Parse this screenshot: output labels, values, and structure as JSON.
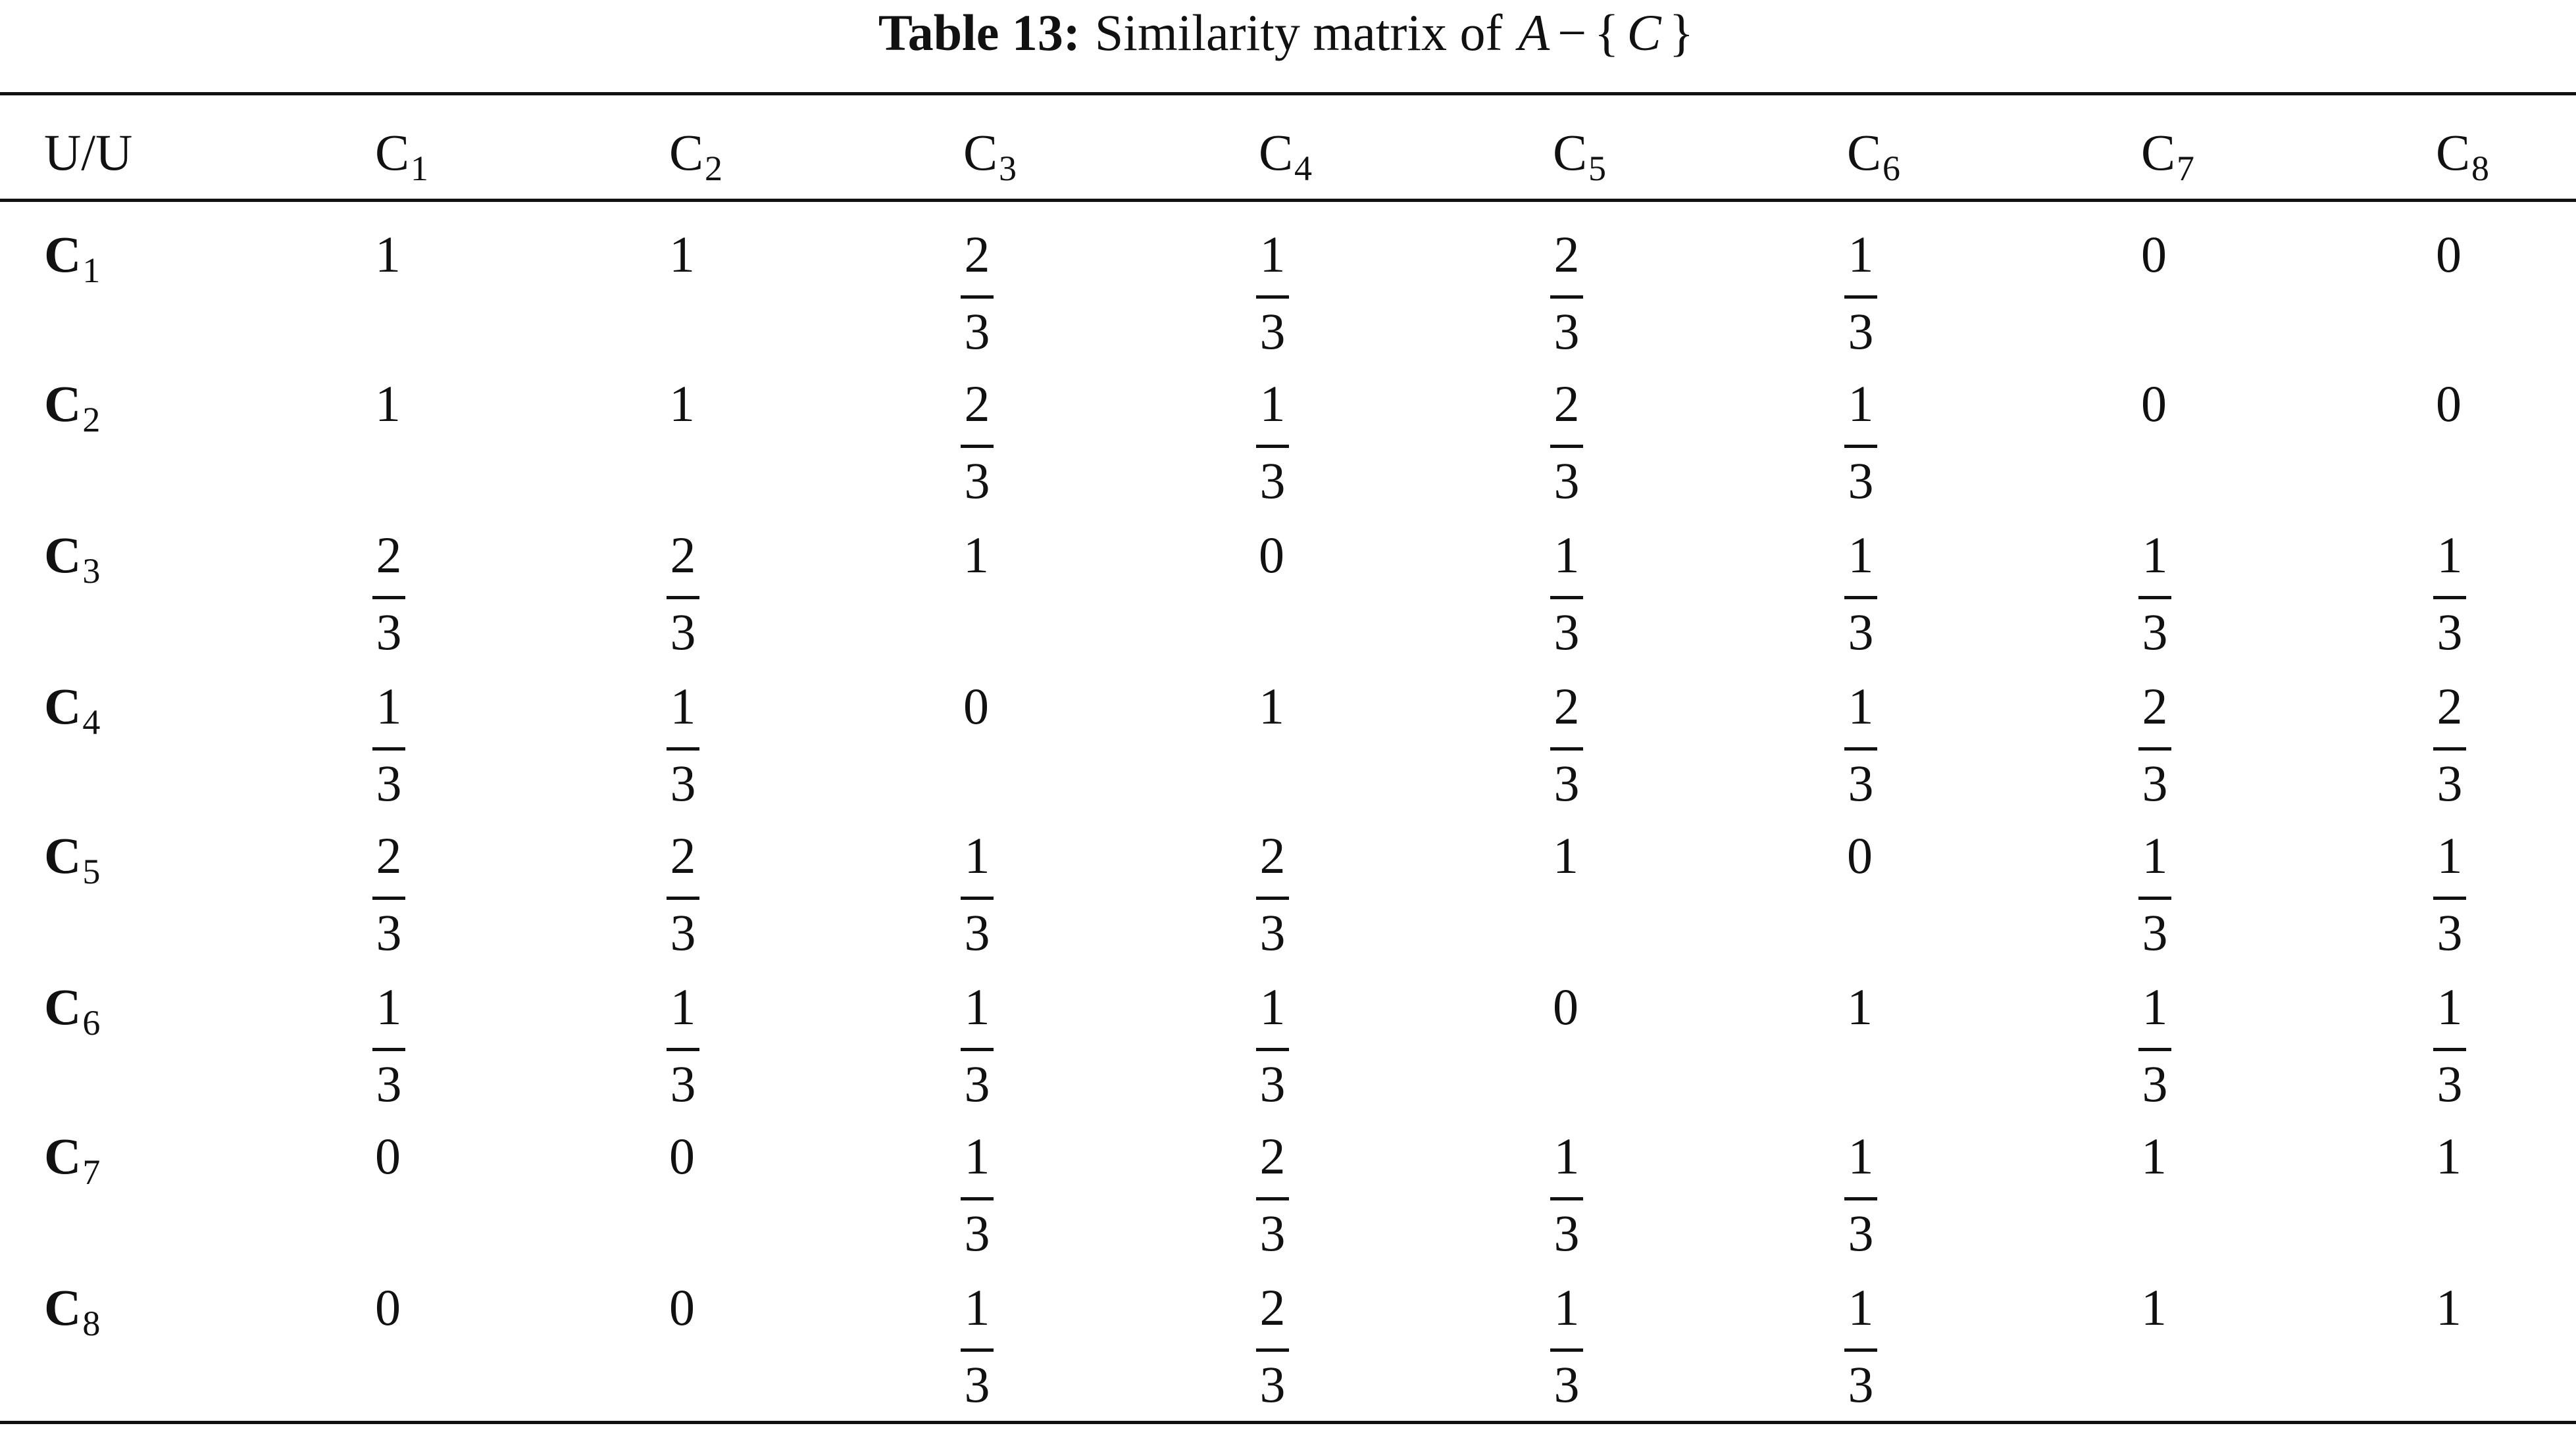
{
  "caption": {
    "label": "Table 13:",
    "text": "Similarity matrix of",
    "math_parts": [
      "A",
      "−",
      "{",
      "C",
      "}"
    ]
  },
  "table": {
    "header": [
      {
        "text": "U/U"
      },
      {
        "base": "C",
        "sub": "1"
      },
      {
        "base": "C",
        "sub": "2"
      },
      {
        "base": "C",
        "sub": "3"
      },
      {
        "base": "C",
        "sub": "4"
      },
      {
        "base": "C",
        "sub": "5"
      },
      {
        "base": "C",
        "sub": "6"
      },
      {
        "base": "C",
        "sub": "7"
      },
      {
        "base": "C",
        "sub": "8"
      }
    ],
    "rows": [
      [
        {
          "base": "C",
          "sub": "1"
        },
        "1",
        "1",
        {
          "numerator": "2",
          "denominator": "3"
        },
        {
          "numerator": "1",
          "denominator": "3"
        },
        {
          "numerator": "2",
          "denominator": "3"
        },
        {
          "numerator": "1",
          "denominator": "3"
        },
        "0",
        "0"
      ],
      [
        {
          "base": "C",
          "sub": "2"
        },
        "1",
        "1",
        {
          "numerator": "2",
          "denominator": "3"
        },
        {
          "numerator": "1",
          "denominator": "3"
        },
        {
          "numerator": "2",
          "denominator": "3"
        },
        {
          "numerator": "1",
          "denominator": "3"
        },
        "0",
        "0"
      ],
      [
        {
          "base": "C",
          "sub": "3"
        },
        {
          "numerator": "2",
          "denominator": "3"
        },
        {
          "numerator": "2",
          "denominator": "3"
        },
        "1",
        "0",
        {
          "numerator": "1",
          "denominator": "3"
        },
        {
          "numerator": "1",
          "denominator": "3"
        },
        {
          "numerator": "1",
          "denominator": "3"
        },
        {
          "numerator": "1",
          "denominator": "3"
        }
      ],
      [
        {
          "base": "C",
          "sub": "4"
        },
        {
          "numerator": "1",
          "denominator": "3"
        },
        {
          "numerator": "1",
          "denominator": "3"
        },
        "0",
        "1",
        {
          "numerator": "2",
          "denominator": "3"
        },
        {
          "numerator": "1",
          "denominator": "3"
        },
        {
          "numerator": "2",
          "denominator": "3"
        },
        {
          "numerator": "2",
          "denominator": "3"
        }
      ],
      [
        {
          "base": "C",
          "sub": "5"
        },
        {
          "numerator": "2",
          "denominator": "3"
        },
        {
          "numerator": "2",
          "denominator": "3"
        },
        {
          "numerator": "1",
          "denominator": "3"
        },
        {
          "numerator": "2",
          "denominator": "3"
        },
        "1",
        "0",
        {
          "numerator": "1",
          "denominator": "3"
        },
        {
          "numerator": "1",
          "denominator": "3"
        }
      ],
      [
        {
          "base": "C",
          "sub": "6"
        },
        {
          "numerator": "1",
          "denominator": "3"
        },
        {
          "numerator": "1",
          "denominator": "3"
        },
        {
          "numerator": "1",
          "denominator": "3"
        },
        {
          "numerator": "1",
          "denominator": "3"
        },
        "0",
        "1",
        {
          "numerator": "1",
          "denominator": "3"
        },
        {
          "numerator": "1",
          "denominator": "3"
        }
      ],
      [
        {
          "base": "C",
          "sub": "7"
        },
        "0",
        "0",
        {
          "numerator": "1",
          "denominator": "3"
        },
        {
          "numerator": "2",
          "denominator": "3"
        },
        {
          "numerator": "1",
          "denominator": "3"
        },
        {
          "numerator": "1",
          "denominator": "3"
        },
        "1",
        "1"
      ],
      [
        {
          "base": "C",
          "sub": "8"
        },
        "0",
        "0",
        {
          "numerator": "1",
          "denominator": "3"
        },
        {
          "numerator": "2",
          "denominator": "3"
        },
        {
          "numerator": "1",
          "denominator": "3"
        },
        {
          "numerator": "1",
          "denominator": "3"
        },
        "1",
        "1"
      ]
    ]
  }
}
